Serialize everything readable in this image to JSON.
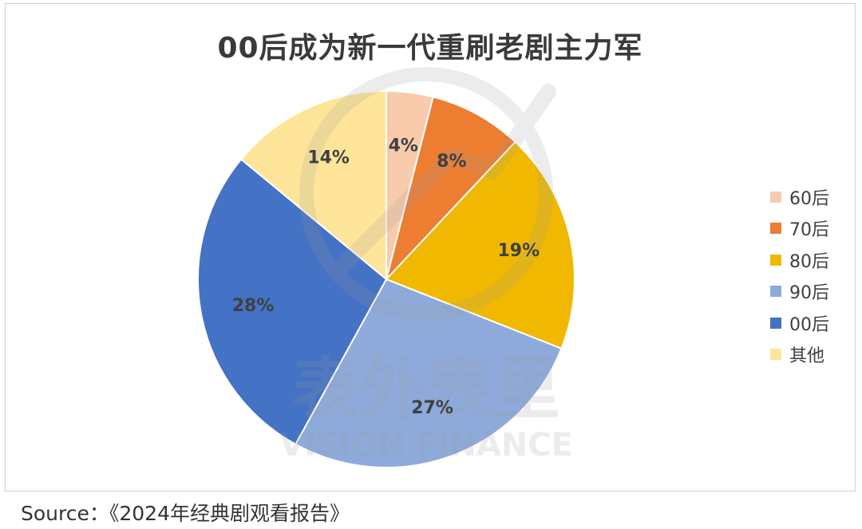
{
  "chart_data": {
    "type": "pie",
    "title": "00后成为新一代重刷老剧主力军",
    "categories": [
      "60后",
      "70后",
      "80后",
      "90后",
      "00后",
      "其他"
    ],
    "values": [
      4,
      8,
      19,
      27,
      28,
      14
    ],
    "data_labels": [
      "4%",
      "8%",
      "19%",
      "27%",
      "28%",
      "14%"
    ],
    "colors": [
      "#f8cbad",
      "#ed7d31",
      "#f0b800",
      "#8eaadb",
      "#4472c4",
      "#fee599"
    ],
    "legend_position": "right"
  },
  "source": "Source：《2024年经典剧观看报告》",
  "watermark": {
    "cn": "表外表里",
    "en": "VISION FINANCE"
  }
}
